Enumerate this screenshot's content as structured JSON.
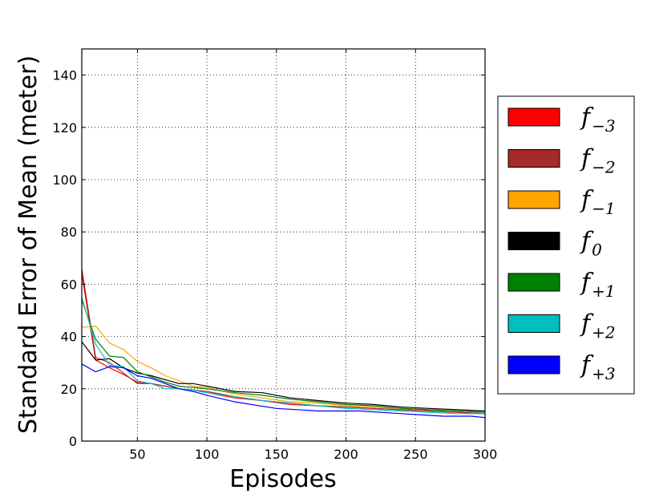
{
  "chart_data": {
    "type": "line",
    "xlabel": "Episodes",
    "ylabel": "Standard Error of Mean (meter)",
    "xlim": [
      10,
      300
    ],
    "ylim": [
      0,
      150
    ],
    "xticks": [
      50,
      100,
      150,
      200,
      250,
      300
    ],
    "yticks": [
      0,
      20,
      40,
      60,
      80,
      100,
      120,
      140
    ],
    "x_tick_labels": [
      "50",
      "100",
      "150",
      "200",
      "250",
      "300"
    ],
    "y_tick_labels": [
      "0",
      "20",
      "40",
      "60",
      "80",
      "100",
      "120",
      "140"
    ],
    "grid": true,
    "legend_position": "right",
    "series": [
      {
        "name": "f−3",
        "label_base": "f",
        "label_sub": "−3",
        "color": "#ff0000",
        "x": [
          10,
          20,
          30,
          40,
          50,
          60,
          70,
          80,
          90,
          100,
          120,
          140,
          160,
          180,
          200,
          220,
          240,
          260,
          280,
          300
        ],
        "y": [
          64,
          31,
          28,
          25.5,
          22.5,
          22,
          21,
          20,
          19.5,
          18.5,
          16.5,
          15.5,
          14,
          13.5,
          13,
          12.5,
          12,
          11.5,
          11,
          10.5
        ]
      },
      {
        "name": "f−2",
        "label_base": "f",
        "label_sub": "−2",
        "color": "#a52a2a",
        "x": [
          10,
          20,
          30,
          40,
          50,
          60,
          70,
          80,
          90,
          100,
          120,
          140,
          160,
          180,
          200,
          220,
          240,
          260,
          280,
          300
        ],
        "y": [
          66,
          32,
          30,
          26,
          22,
          22,
          21,
          20,
          19.5,
          19,
          17,
          15.5,
          14.5,
          13.5,
          13,
          12.5,
          12,
          11.5,
          11,
          10.5
        ]
      },
      {
        "name": "f−1",
        "label_base": "f",
        "label_sub": "−1",
        "color": "#ffa500",
        "x": [
          10,
          20,
          30,
          40,
          50,
          60,
          70,
          80,
          90,
          100,
          120,
          140,
          160,
          180,
          200,
          220,
          240,
          260,
          280,
          300
        ],
        "y": [
          43.5,
          44,
          37.5,
          35,
          30.5,
          28,
          25,
          23,
          21,
          20.5,
          18,
          16.5,
          15,
          14.5,
          13.5,
          13,
          12.5,
          12,
          11.5,
          11
        ]
      },
      {
        "name": "f0",
        "label_base": "f",
        "label_sub": "0",
        "color": "#000000",
        "x": [
          10,
          20,
          30,
          40,
          50,
          60,
          70,
          80,
          90,
          100,
          120,
          140,
          160,
          180,
          200,
          220,
          240,
          260,
          280,
          300
        ],
        "y": [
          38,
          31,
          31.5,
          28,
          26,
          25,
          23.5,
          22,
          22,
          21,
          19,
          18.5,
          16.5,
          15.5,
          14.5,
          14,
          13,
          12.5,
          12,
          11.5
        ]
      },
      {
        "name": "f+1",
        "label_base": "f",
        "label_sub": "+1",
        "color": "#008000",
        "x": [
          10,
          20,
          30,
          40,
          50,
          60,
          70,
          80,
          90,
          100,
          120,
          140,
          160,
          180,
          200,
          220,
          240,
          260,
          280,
          300
        ],
        "y": [
          54,
          39,
          32.5,
          32,
          26.5,
          24.5,
          22.5,
          21,
          20.5,
          20,
          18.5,
          17.5,
          16,
          15,
          14,
          13.5,
          12.5,
          12,
          11.5,
          11
        ]
      },
      {
        "name": "f+2",
        "label_base": "f",
        "label_sub": "+2",
        "color": "#00bfbf",
        "x": [
          10,
          20,
          30,
          40,
          50,
          60,
          70,
          80,
          90,
          100,
          120,
          140,
          160,
          180,
          200,
          220,
          240,
          260,
          280,
          300
        ],
        "y": [
          55,
          37,
          29,
          28.5,
          23,
          22,
          20,
          20,
          19.5,
          18.5,
          17,
          15.5,
          14.5,
          13.5,
          12.5,
          12,
          11.5,
          11,
          10.5,
          10.5
        ]
      },
      {
        "name": "f+3",
        "label_base": "f",
        "label_sub": "+3",
        "color": "#0000ff",
        "x": [
          10,
          20,
          30,
          40,
          50,
          60,
          70,
          80,
          90,
          100,
          120,
          150,
          180,
          210,
          240,
          270,
          290,
          300
        ],
        "y": [
          29.5,
          26.5,
          28.5,
          28,
          25,
          24,
          22,
          20,
          19,
          17.5,
          15,
          12.5,
          11.5,
          11.5,
          10.5,
          9.5,
          9.5,
          9
        ]
      }
    ]
  }
}
